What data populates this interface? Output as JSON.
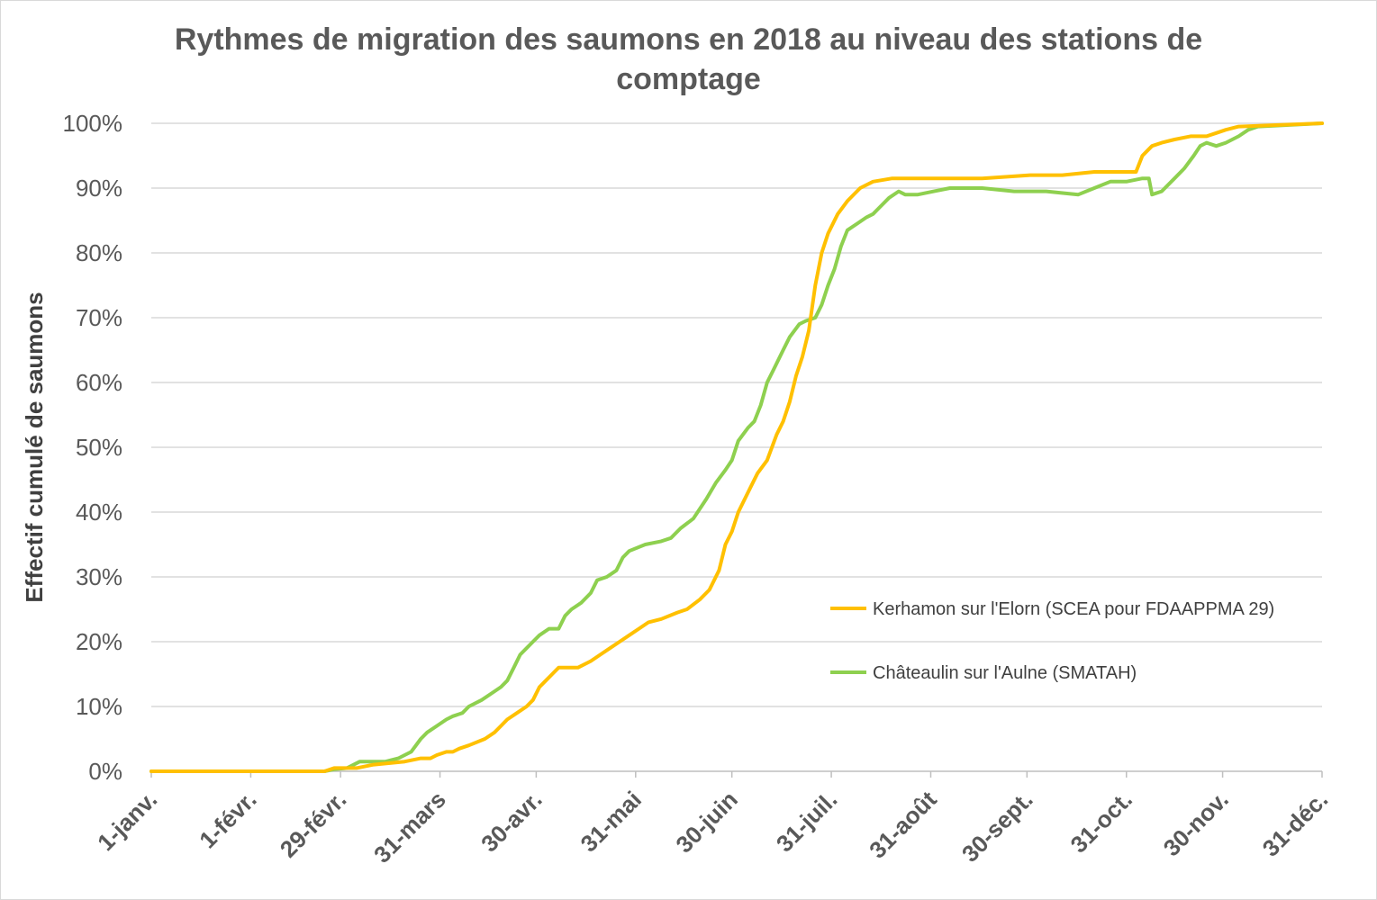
{
  "chart_data": {
    "type": "line",
    "title_line1": "Rythmes de migration des saumons en 2018 au niveau des stations de",
    "title_line2": "comptage",
    "xlabel": "",
    "ylabel": "Effectif cumulé de saumons",
    "ylim": [
      0,
      100
    ],
    "yticks": [
      "0%",
      "10%",
      "20%",
      "30%",
      "40%",
      "50%",
      "60%",
      "70%",
      "80%",
      "90%",
      "100%"
    ],
    "xlim": [
      1,
      366
    ],
    "xtick_labels": [
      "1-janv.",
      "1-févr.",
      "29-févr.",
      "31-mars",
      "30-avr.",
      "31-mai",
      "30-juin",
      "31-juil.",
      "31-août",
      "30-sept.",
      "31-oct.",
      "30-nov.",
      "31-déc."
    ],
    "xtick_days": [
      1,
      32,
      60,
      91,
      121,
      152,
      182,
      213,
      244,
      274,
      305,
      335,
      366
    ],
    "grid": true,
    "legend_position": "right",
    "series": [
      {
        "name": "Kerhamon sur l'Elorn (SCEA pour FDAAPPMA 29)",
        "color": "#FFC000",
        "points": [
          [
            1,
            0
          ],
          [
            55,
            0
          ],
          [
            58,
            0.5
          ],
          [
            65,
            0.5
          ],
          [
            70,
            1
          ],
          [
            80,
            1.5
          ],
          [
            85,
            2
          ],
          [
            88,
            2
          ],
          [
            90,
            2.5
          ],
          [
            93,
            3
          ],
          [
            95,
            3
          ],
          [
            97,
            3.5
          ],
          [
            100,
            4
          ],
          [
            105,
            5
          ],
          [
            108,
            6
          ],
          [
            110,
            7
          ],
          [
            112,
            8
          ],
          [
            115,
            9
          ],
          [
            118,
            10
          ],
          [
            120,
            11
          ],
          [
            122,
            13
          ],
          [
            124,
            14
          ],
          [
            126,
            15
          ],
          [
            128,
            16
          ],
          [
            131,
            16
          ],
          [
            134,
            16
          ],
          [
            138,
            17
          ],
          [
            141,
            18
          ],
          [
            144,
            19
          ],
          [
            147,
            20
          ],
          [
            150,
            21
          ],
          [
            153,
            22
          ],
          [
            156,
            23
          ],
          [
            160,
            23.5
          ],
          [
            165,
            24.5
          ],
          [
            168,
            25
          ],
          [
            172,
            26.5
          ],
          [
            175,
            28
          ],
          [
            178,
            31
          ],
          [
            180,
            35
          ],
          [
            182,
            37
          ],
          [
            184,
            40
          ],
          [
            186,
            42
          ],
          [
            188,
            44
          ],
          [
            190,
            46
          ],
          [
            193,
            48
          ],
          [
            196,
            52
          ],
          [
            198,
            54
          ],
          [
            200,
            57
          ],
          [
            202,
            61
          ],
          [
            204,
            64
          ],
          [
            206,
            68
          ],
          [
            208,
            75
          ],
          [
            210,
            80
          ],
          [
            212,
            83
          ],
          [
            215,
            86
          ],
          [
            218,
            88
          ],
          [
            222,
            90
          ],
          [
            226,
            91
          ],
          [
            232,
            91.5
          ],
          [
            240,
            91.5
          ],
          [
            260,
            91.5
          ],
          [
            275,
            92
          ],
          [
            285,
            92
          ],
          [
            295,
            92.5
          ],
          [
            305,
            92.5
          ],
          [
            308,
            92.5
          ],
          [
            310,
            95
          ],
          [
            313,
            96.5
          ],
          [
            316,
            97
          ],
          [
            320,
            97.5
          ],
          [
            325,
            98
          ],
          [
            330,
            98
          ],
          [
            333,
            98.5
          ],
          [
            336,
            99
          ],
          [
            340,
            99.5
          ],
          [
            366,
            100
          ]
        ]
      },
      {
        "name": "Châteaulin sur l'Aulne (SMATAH)",
        "color": "#8ED04F",
        "points": [
          [
            1,
            0
          ],
          [
            55,
            0
          ],
          [
            58,
            0.3
          ],
          [
            62,
            0.5
          ],
          [
            64,
            1
          ],
          [
            66,
            1.5
          ],
          [
            70,
            1.5
          ],
          [
            74,
            1.5
          ],
          [
            78,
            2
          ],
          [
            82,
            3
          ],
          [
            85,
            5
          ],
          [
            87,
            6
          ],
          [
            90,
            7
          ],
          [
            93,
            8
          ],
          [
            95,
            8.5
          ],
          [
            98,
            9
          ],
          [
            100,
            10
          ],
          [
            104,
            11
          ],
          [
            107,
            12
          ],
          [
            110,
            13
          ],
          [
            112,
            14
          ],
          [
            114,
            16
          ],
          [
            116,
            18
          ],
          [
            118,
            19
          ],
          [
            120,
            20
          ],
          [
            122,
            21
          ],
          [
            125,
            22
          ],
          [
            128,
            22
          ],
          [
            130,
            24
          ],
          [
            132,
            25
          ],
          [
            135,
            26
          ],
          [
            138,
            27.5
          ],
          [
            140,
            29.5
          ],
          [
            143,
            30
          ],
          [
            146,
            31
          ],
          [
            148,
            33
          ],
          [
            150,
            34
          ],
          [
            155,
            35
          ],
          [
            160,
            35.5
          ],
          [
            163,
            36
          ],
          [
            166,
            37.5
          ],
          [
            170,
            39
          ],
          [
            174,
            42
          ],
          [
            177,
            44.5
          ],
          [
            180,
            46.5
          ],
          [
            182,
            48
          ],
          [
            184,
            51
          ],
          [
            187,
            53
          ],
          [
            189,
            54
          ],
          [
            191,
            56.5
          ],
          [
            193,
            60
          ],
          [
            195,
            62
          ],
          [
            198,
            65
          ],
          [
            200,
            67
          ],
          [
            203,
            69
          ],
          [
            205,
            69.5
          ],
          [
            208,
            70
          ],
          [
            210,
            72
          ],
          [
            212,
            75
          ],
          [
            214,
            77.5
          ],
          [
            216,
            81
          ],
          [
            218,
            83.5
          ],
          [
            221,
            84.5
          ],
          [
            224,
            85.5
          ],
          [
            226,
            86
          ],
          [
            228,
            87
          ],
          [
            231,
            88.5
          ],
          [
            234,
            89.5
          ],
          [
            236,
            89
          ],
          [
            240,
            89
          ],
          [
            245,
            89.5
          ],
          [
            250,
            90
          ],
          [
            260,
            90
          ],
          [
            270,
            89.5
          ],
          [
            280,
            89.5
          ],
          [
            290,
            89
          ],
          [
            295,
            90
          ],
          [
            300,
            91
          ],
          [
            305,
            91
          ],
          [
            310,
            91.5
          ],
          [
            312,
            91.5
          ],
          [
            313,
            89
          ],
          [
            316,
            89.5
          ],
          [
            320,
            91.5
          ],
          [
            323,
            93
          ],
          [
            326,
            95
          ],
          [
            328,
            96.5
          ],
          [
            330,
            97
          ],
          [
            333,
            96.5
          ],
          [
            336,
            97
          ],
          [
            340,
            98
          ],
          [
            343,
            99
          ],
          [
            346,
            99.5
          ],
          [
            366,
            100
          ]
        ]
      }
    ]
  }
}
